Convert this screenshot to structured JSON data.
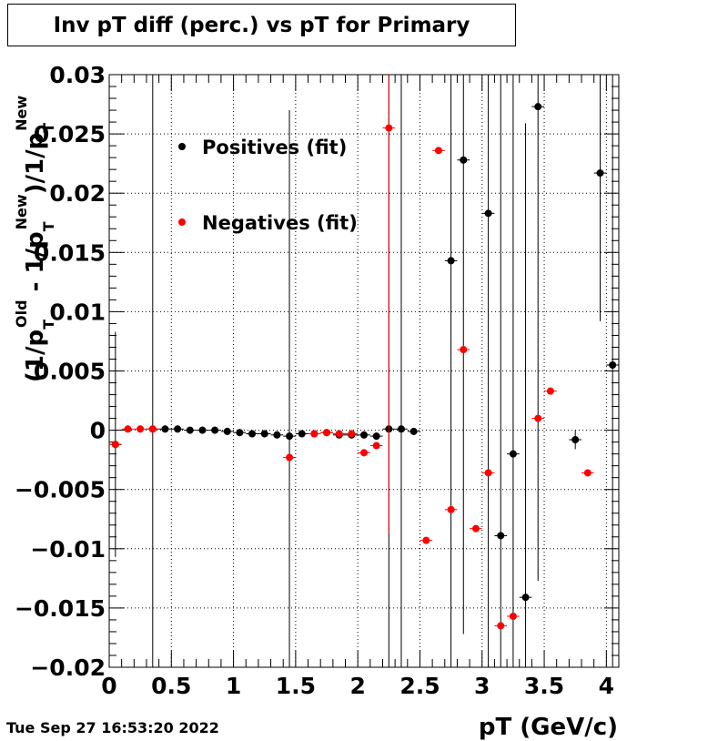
{
  "title": "Inv pT diff (perc.) vs pT for Primary",
  "timestamp": "Tue Sep 27 16:53:20 2022",
  "chart_data": {
    "type": "scatter",
    "title": "Inv pT diff (perc.) vs pT for Primary",
    "xlabel": "pT (GeV/c)",
    "ylabel_parts": {
      "open": "(1/p",
      "sub1": "T",
      "sup1": "Old",
      "mid": " - 1/p",
      "sub2": "T",
      "sup2": "New",
      "tail": ")/1/p",
      "sub3": "T",
      "sup3": "New"
    },
    "xlim": [
      0,
      4.1
    ],
    "ylim": [
      -0.02,
      0.03
    ],
    "x_ticks": [
      "0",
      "0.5",
      "1",
      "1.5",
      "2",
      "2.5",
      "3",
      "3.5",
      "4"
    ],
    "y_ticks": [
      "0.03",
      "0.025",
      "0.02",
      "0.015",
      "0.01",
      "0.005",
      "0",
      "−0.005",
      "−0.01",
      "−0.015",
      "−0.02"
    ],
    "grid": true,
    "legend_position": "top-left",
    "series": [
      {
        "name": "Positives (fit)",
        "color": "#000000",
        "points": [
          {
            "x": 0.05,
            "y": -0.0012,
            "ey": 0.0095
          },
          {
            "x": 0.35,
            "y": 0.0001,
            "ey": 0.04
          },
          {
            "x": 0.45,
            "y": 0.0001,
            "ey": 0.0003
          },
          {
            "x": 0.55,
            "y": 0.0001,
            "ey": 0.0003
          },
          {
            "x": 0.65,
            "y": 0.0,
            "ey": 0.0003
          },
          {
            "x": 0.75,
            "y": 0.0,
            "ey": 0.0003
          },
          {
            "x": 0.85,
            "y": 0.0,
            "ey": 0.0003
          },
          {
            "x": 0.95,
            "y": -0.0001,
            "ey": 0.0003
          },
          {
            "x": 1.05,
            "y": -0.0002,
            "ey": 0.0003
          },
          {
            "x": 1.15,
            "y": -0.0003,
            "ey": 0.0003
          },
          {
            "x": 1.25,
            "y": -0.0003,
            "ey": 0.0003
          },
          {
            "x": 1.35,
            "y": -0.0004,
            "ey": 0.0003
          },
          {
            "x": 1.45,
            "y": -0.0005,
            "ey": 0.0275
          },
          {
            "x": 1.55,
            "y": -0.0003,
            "ey": 0.0003
          },
          {
            "x": 1.65,
            "y": -0.0003,
            "ey": 0.0003
          },
          {
            "x": 1.75,
            "y": -0.0002,
            "ey": 0.0003
          },
          {
            "x": 1.85,
            "y": -0.0004,
            "ey": 0.0003
          },
          {
            "x": 1.95,
            "y": -0.0004,
            "ey": 0.0003
          },
          {
            "x": 2.05,
            "y": -0.0004,
            "ey": 0.0003
          },
          {
            "x": 2.15,
            "y": -0.0005,
            "ey": 0.0003
          },
          {
            "x": 2.25,
            "y": 0.0001,
            "ey": 0.04
          },
          {
            "x": 2.35,
            "y": 0.0001,
            "ey": 0.04
          },
          {
            "x": 2.45,
            "y": -0.0001,
            "ey": 0.0003
          },
          {
            "x": 2.75,
            "y": 0.0143,
            "ey": 0.04
          },
          {
            "x": 2.85,
            "y": 0.0228,
            "ey": 0.04
          },
          {
            "x": 3.05,
            "y": 0.0183,
            "ey": 0.04
          },
          {
            "x": 3.15,
            "y": -0.0089,
            "ey": 0.04
          },
          {
            "x": 3.25,
            "y": -0.002,
            "ey": 0.04
          },
          {
            "x": 3.35,
            "y": -0.0141,
            "ey": 0.04
          },
          {
            "x": 3.45,
            "y": 0.0273,
            "ey": 0.04
          },
          {
            "x": 3.75,
            "y": -0.0008,
            "ey": 0.0008
          },
          {
            "x": 3.95,
            "y": 0.0217,
            "ey": 0.0125
          },
          {
            "x": 4.05,
            "y": 0.0055,
            "ey": 0.04
          }
        ]
      },
      {
        "name": "Negatives (fit)",
        "color": "#ff0000",
        "points": [
          {
            "x": 0.05,
            "y": -0.0012,
            "ey": 0.0003
          },
          {
            "x": 0.15,
            "y": 0.0001,
            "ey": 0.0003
          },
          {
            "x": 0.25,
            "y": 0.0001,
            "ey": 0.0003
          },
          {
            "x": 0.35,
            "y": 0.0001,
            "ey": 0.0003
          },
          {
            "x": 1.45,
            "y": -0.0023,
            "ey": 0.0003
          },
          {
            "x": 1.65,
            "y": -0.0003,
            "ey": 0.0003
          },
          {
            "x": 1.75,
            "y": -0.0002,
            "ey": 0.0003
          },
          {
            "x": 1.85,
            "y": -0.0003,
            "ey": 0.0003
          },
          {
            "x": 1.95,
            "y": -0.0003,
            "ey": 0.0003
          },
          {
            "x": 2.05,
            "y": -0.0019,
            "ey": 0.0003
          },
          {
            "x": 2.15,
            "y": -0.0013,
            "ey": 0.0003
          },
          {
            "x": 2.25,
            "y": 0.0255,
            "ey": 0.0342
          },
          {
            "x": 2.55,
            "y": -0.0093,
            "ey": 0.0003
          },
          {
            "x": 2.65,
            "y": 0.0236,
            "ey": 0.0003
          },
          {
            "x": 2.75,
            "y": -0.0067,
            "ey": 0.0003
          },
          {
            "x": 2.85,
            "y": 0.0068,
            "ey": 0.0003
          },
          {
            "x": 2.95,
            "y": -0.0083,
            "ey": 0.0003
          },
          {
            "x": 3.05,
            "y": -0.0036,
            "ey": 0.0003
          },
          {
            "x": 3.15,
            "y": -0.0165,
            "ey": 0.0003
          },
          {
            "x": 3.25,
            "y": -0.0157,
            "ey": 0.0003
          },
          {
            "x": 3.45,
            "y": 0.001,
            "ey": 0.0003
          },
          {
            "x": 3.55,
            "y": 0.0033,
            "ey": 0.0003
          },
          {
            "x": 3.85,
            "y": -0.0036,
            "ey": 0.0003
          }
        ]
      }
    ]
  }
}
